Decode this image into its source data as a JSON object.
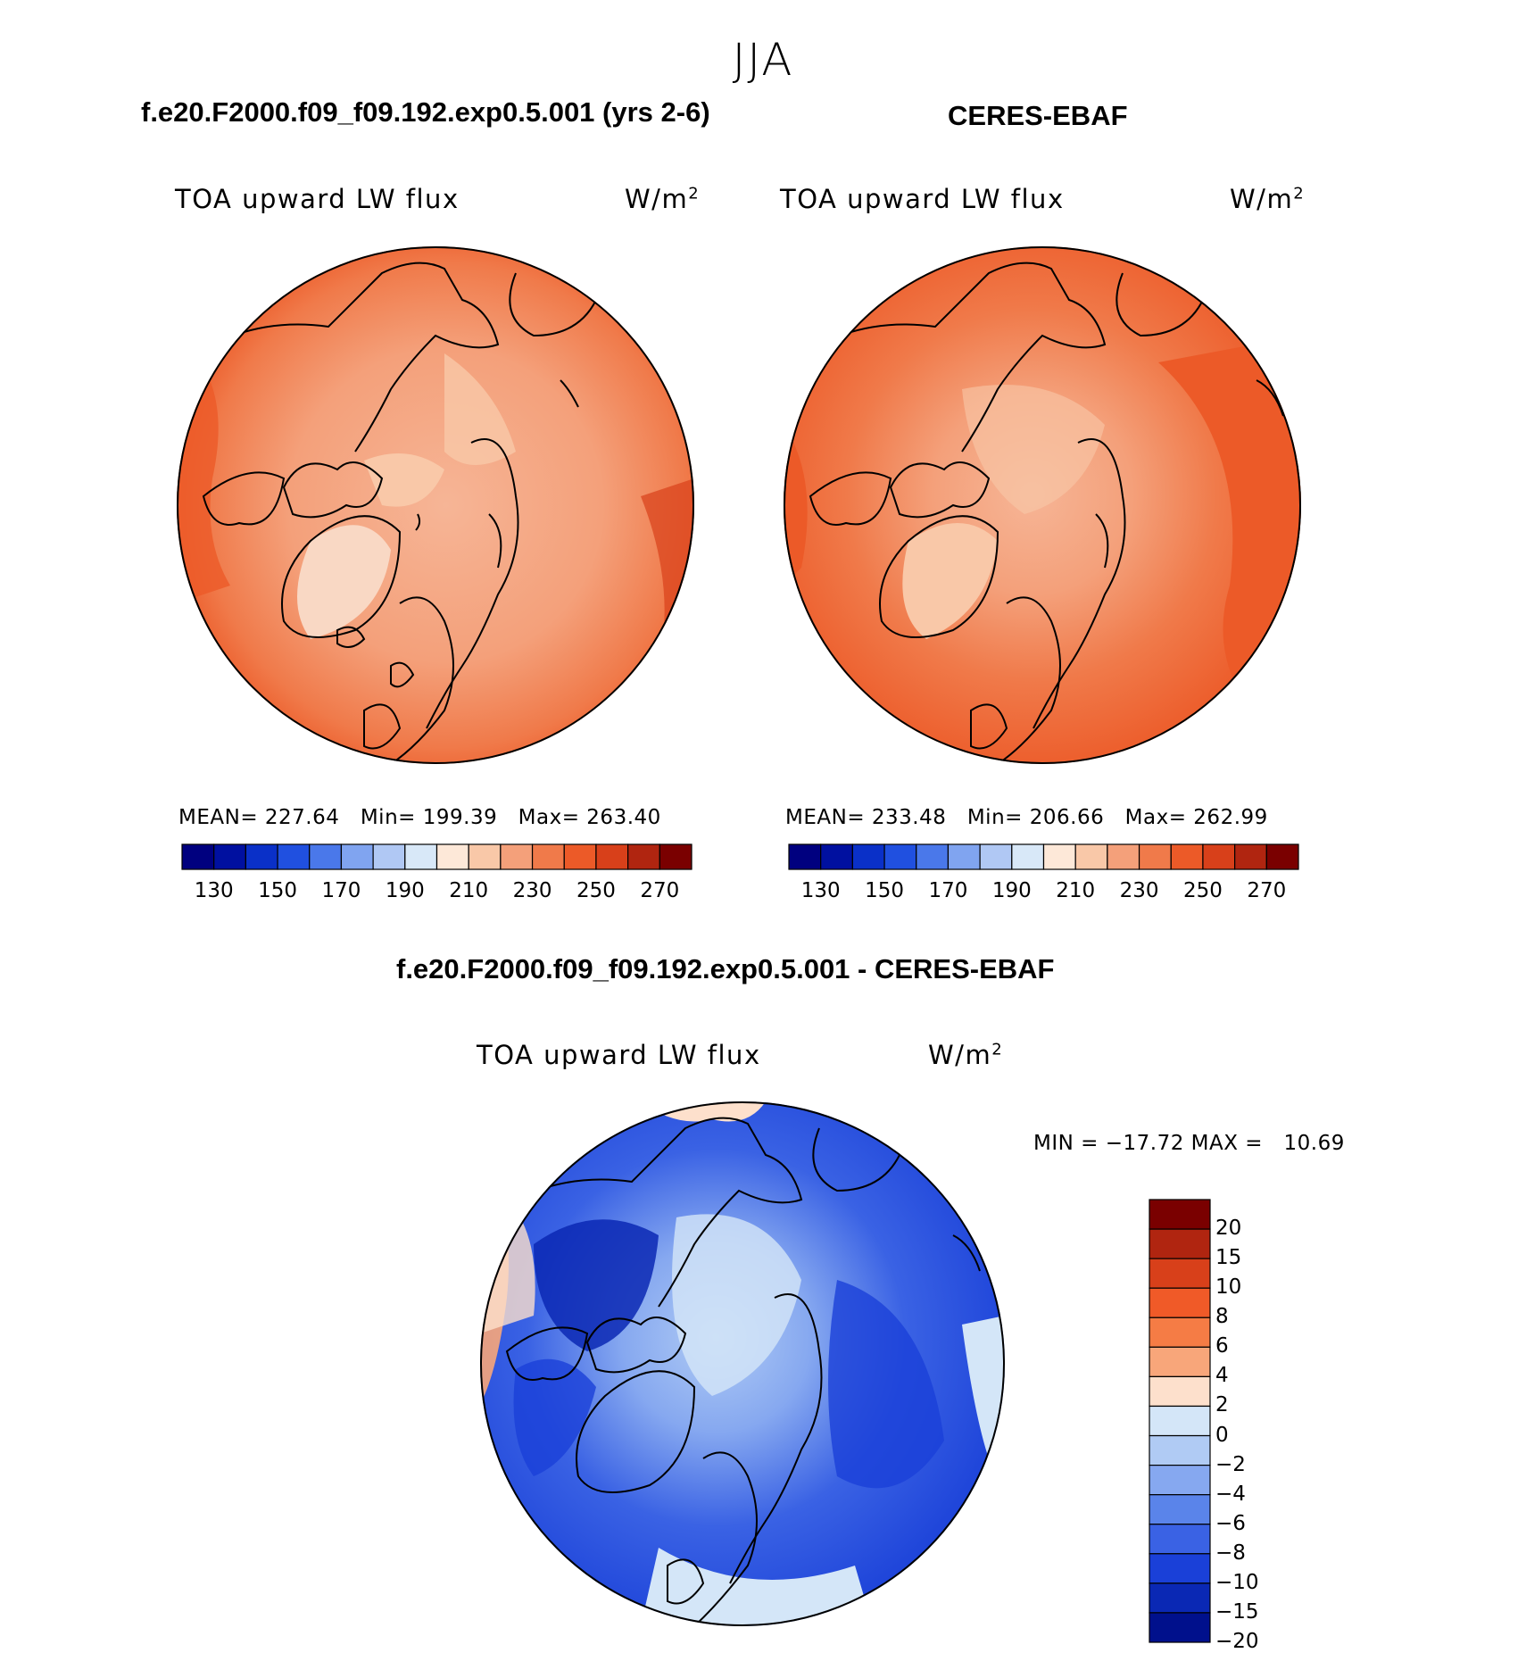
{
  "figure": {
    "season": "JJA"
  },
  "panels": [
    {
      "title": "f.e20.F2000.f09_f09.192.exp0.5.001 (yrs 2-6)",
      "variable": "TOA upward LW flux",
      "units": "W/m",
      "units_sup": "2",
      "stats": {
        "mean_label": "MEAN=",
        "mean": "227.64",
        "min_label": "Min=",
        "min": "199.39",
        "max_label": "Max=",
        "max": "263.40"
      }
    },
    {
      "title": "CERES-EBAF",
      "variable": "TOA upward LW flux",
      "units": "W/m",
      "units_sup": "2",
      "stats": {
        "mean_label": "MEAN=",
        "mean": "233.48",
        "min_label": "Min=",
        "min": "206.66",
        "max_label": "Max=",
        "max": "262.99"
      }
    }
  ],
  "diff_panel": {
    "title": "f.e20.F2000.f09_f09.192.exp0.5.001 - CERES-EBAF",
    "variable": "TOA upward LW flux",
    "units": "W/m",
    "units_sup": "2",
    "minmax": "MIN = −17.72 MAX =   10.69"
  },
  "colorbars": {
    "abs": {
      "colors": [
        "#00007f",
        "#0010a0",
        "#0a30c8",
        "#2050e0",
        "#4a78ea",
        "#80a4f0",
        "#b0c8f4",
        "#d8e8f8",
        "#fde8d8",
        "#f9c8a8",
        "#f4a07a",
        "#f07a4a",
        "#ec5a28",
        "#d8401a",
        "#b02510",
        "#7a0000"
      ],
      "tick_labels": [
        "130",
        "150",
        "170",
        "190",
        "210",
        "230",
        "250",
        "270"
      ]
    },
    "diff": {
      "colors": [
        "#7a0000",
        "#b02510",
        "#d8401a",
        "#f05a28",
        "#f57c45",
        "#f8a67a",
        "#fde0cc",
        "#d4e6f8",
        "#b0cbf4",
        "#86a8f0",
        "#5a84ea",
        "#3a62e4",
        "#1a40d8",
        "#0a28b4",
        "#00108c"
      ],
      "tick_labels": [
        "20",
        "15",
        "10",
        "8",
        "6",
        "4",
        "2",
        "0",
        "−2",
        "−4",
        "−6",
        "−8",
        "−10",
        "−15",
        "−20"
      ]
    }
  }
}
